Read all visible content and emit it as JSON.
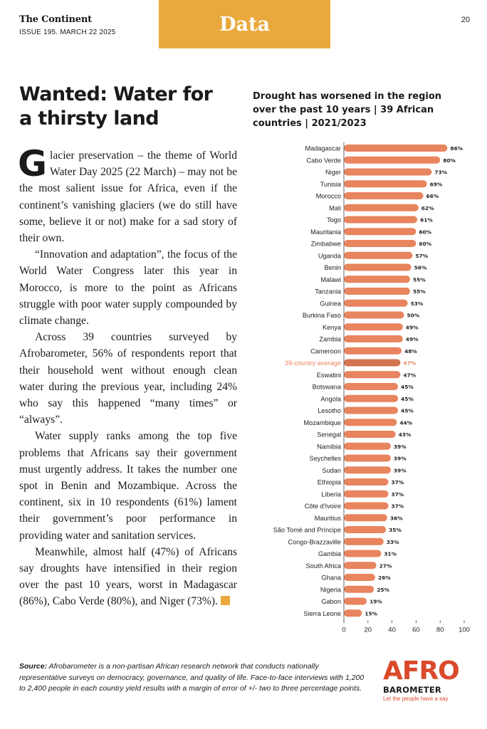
{
  "masthead": {
    "brand": "The Continent",
    "issue": "ISSUE 195. MARCH 22 2025"
  },
  "section_tab": "Data",
  "page_number": "20",
  "article": {
    "headline": "Wanted: Water for a thirsty land",
    "dropcap": "G",
    "first_paragraph": "lacier preservation – the theme of World Water Day 2025 (22 March) – may not be the most salient issue for Africa, even if the continent’s vanishing glaciers (we do still have some, believe it or not) make for a sad story of their own.",
    "paragraphs": [
      "“Innovation and adaptation”, the focus of the World Water Congress later this year in Morocco, is more to the point as Africans struggle with poor water supply compounded by climate change.",
      "Across 39 countries surveyed by Afrobarometer, 56% of respondents report that their household went without enough clean water during the previous year, including 24% who say this happened “many times” or “always”.",
      "Water supply ranks among the top five problems that Africans say their government must urgently address. It takes the number one spot in Benin and Mozambique. Across the continent, six in 10 respondents (61%) lament their government’s poor performance in providing water and sanitation services."
    ],
    "last_paragraph": "Meanwhile, almost half (47%) of Africans say droughts have intensified in their region over the past 10 years, worst in Madagascar (86%), Cabo Verde (80%), and Niger (73%)."
  },
  "chart_data": {
    "type": "bar",
    "orientation": "horizontal",
    "title": "Drought has worsened in the region over the past 10 years | 39 African countries | 2021/2023",
    "categories": [
      "Madagascar",
      "Cabo Verde",
      "Niger",
      "Tunisia",
      "Morocco",
      "Mali",
      "Togo",
      "Mauritania",
      "Zimbabwe",
      "Uganda",
      "Benin",
      "Malawi",
      "Tanzania",
      "Guinea",
      "Burkina Faso",
      "Kenya",
      "Zambia",
      "Cameroon",
      "39-country average",
      "Eswatini",
      "Botswana",
      "Angola",
      "Lesotho",
      "Mozambique",
      "Senegal",
      "Namibia",
      "Seychelles",
      "Sudan",
      "Ethiopia",
      "Liberia",
      "Côte d'Ivoire",
      "Mauritius",
      "São Tomé and Príncipe",
      "Congo-Brazzaville",
      "Gambia",
      "South Africa",
      "Ghana",
      "Nigeria",
      "Gabon",
      "Sierra Leone"
    ],
    "values": [
      86,
      80,
      73,
      69,
      66,
      62,
      61,
      60,
      60,
      57,
      56,
      55,
      55,
      53,
      50,
      49,
      49,
      48,
      47,
      47,
      45,
      45,
      45,
      44,
      43,
      39,
      39,
      39,
      37,
      37,
      37,
      36,
      35,
      33,
      31,
      27,
      26,
      25,
      19,
      15
    ],
    "value_suffix": "%",
    "highlight": "39-country average",
    "xlim": [
      0,
      100
    ],
    "xticks": [
      0,
      20,
      40,
      60,
      80,
      100
    ],
    "grid": false,
    "legend": "none",
    "colors": {
      "bar": "#E8845E",
      "highlight_bar": "#D4734F",
      "highlight_label": "#E8845E"
    }
  },
  "source": {
    "label": "Source:",
    "text": "Afrobarometer is a non-partisan African research network that conducts nationally representative surveys on democracy, governance, and quality of life. Face-to-face interviews with 1,200 to 2,400 people in each country yield results with a margin of error of +/- two to three percentage points."
  },
  "logo": {
    "word": "AFRO",
    "sub": "BAROMETER",
    "tagline": "Let the people have a say"
  },
  "colors": {
    "accent": "#EAA93C",
    "logo_red": "#D94A2B"
  }
}
